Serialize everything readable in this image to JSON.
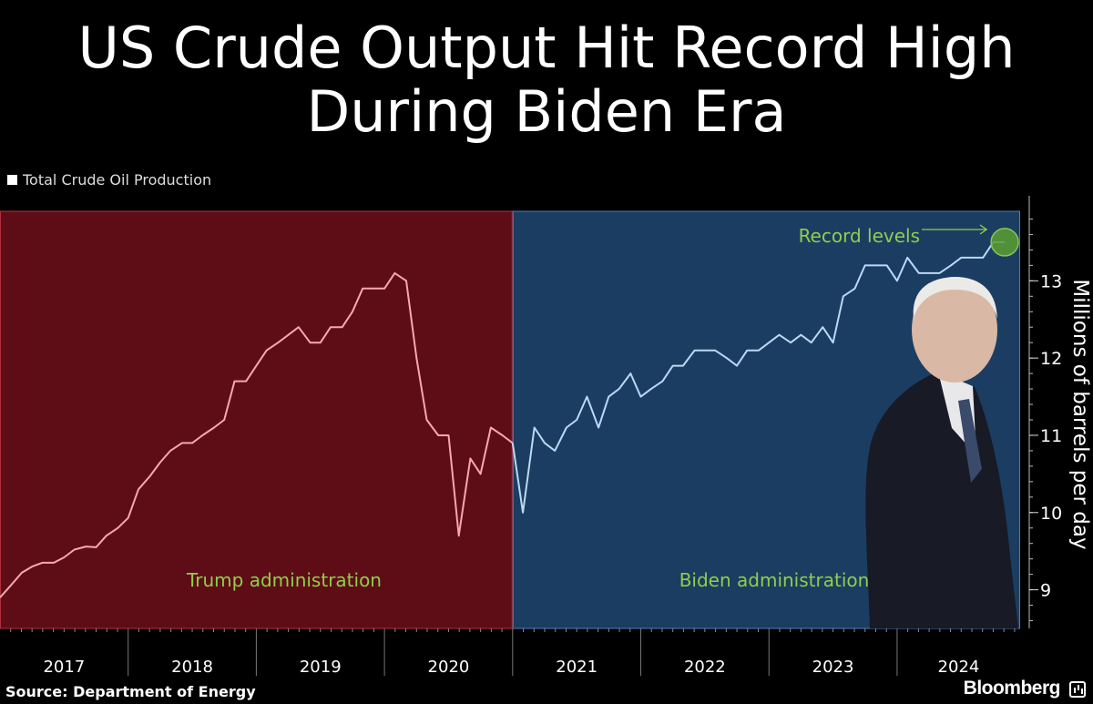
{
  "title": [
    "US Crude Output Hit Record High",
    "During Biden Era"
  ],
  "legend": "Total Crude Oil Production",
  "source": "Source:  Department of Energy",
  "brand": "Bloomberg",
  "colors": {
    "trump_region": "#5e0d17",
    "biden_region": "#1b3d62",
    "trump_line": "#f5a8b4",
    "biden_line": "#bcd8f5",
    "annotation": "#8fcf4a",
    "record_marker": "#5a9e32"
  },
  "chart_data": {
    "type": "line",
    "title": "US Crude Output Hit Record High During Biden Era",
    "xlabel": "",
    "ylabel": "Millions of barrels per day",
    "ylim": [
      8.5,
      13.9
    ],
    "xlim": [
      2017.0,
      2024.96
    ],
    "y_ticks": [
      9,
      10,
      11,
      12,
      13
    ],
    "x_tick_labels": [
      "2017",
      "2018",
      "2019",
      "2020",
      "2021",
      "2022",
      "2023",
      "2024"
    ],
    "regions": [
      {
        "name": "Trump administration",
        "start": 2017.0,
        "end": 2021.0
      },
      {
        "name": "Biden administration",
        "start": 2021.0,
        "end": 2024.96
      }
    ],
    "annotation": {
      "text": "Record levels",
      "x": 2024.84,
      "y": 13.5
    },
    "series": [
      {
        "name": "Trump administration",
        "x": [
          2017.0,
          2017.08,
          2017.17,
          2017.25,
          2017.33,
          2017.42,
          2017.5,
          2017.58,
          2017.67,
          2017.75,
          2017.83,
          2017.92,
          2018.0,
          2018.08,
          2018.17,
          2018.25,
          2018.33,
          2018.42,
          2018.5,
          2018.58,
          2018.67,
          2018.75,
          2018.83,
          2018.92,
          2019.0,
          2019.08,
          2019.17,
          2019.25,
          2019.33,
          2019.42,
          2019.5,
          2019.58,
          2019.67,
          2019.75,
          2019.83,
          2019.92,
          2020.0,
          2020.08,
          2020.17,
          2020.25,
          2020.33,
          2020.42,
          2020.5,
          2020.58,
          2020.67,
          2020.75,
          2020.83,
          2020.92,
          2021.0
        ],
        "values": [
          8.9,
          9.05,
          9.22,
          9.3,
          9.35,
          9.35,
          9.42,
          9.52,
          9.56,
          9.55,
          9.7,
          9.8,
          9.93,
          10.3,
          10.47,
          10.65,
          10.8,
          10.9,
          10.9,
          11.0,
          11.1,
          11.2,
          11.7,
          11.7,
          11.9,
          12.1,
          12.2,
          12.3,
          12.4,
          12.2,
          12.2,
          12.4,
          12.4,
          12.6,
          12.9,
          12.9,
          12.9,
          13.1,
          13.0,
          12.0,
          11.2,
          11.0,
          11.0,
          9.7,
          10.7,
          10.5,
          11.1,
          11.0,
          10.9
        ]
      },
      {
        "name": "Biden administration",
        "x": [
          2021.0,
          2021.08,
          2021.17,
          2021.25,
          2021.33,
          2021.42,
          2021.5,
          2021.58,
          2021.67,
          2021.75,
          2021.83,
          2021.92,
          2022.0,
          2022.08,
          2022.17,
          2022.25,
          2022.33,
          2022.42,
          2022.5,
          2022.58,
          2022.67,
          2022.75,
          2022.83,
          2022.92,
          2023.0,
          2023.08,
          2023.17,
          2023.25,
          2023.33,
          2023.42,
          2023.5,
          2023.58,
          2023.67,
          2023.75,
          2023.83,
          2023.92,
          2024.0,
          2024.08,
          2024.17,
          2024.25,
          2024.33,
          2024.42,
          2024.5,
          2024.58,
          2024.67,
          2024.75,
          2024.84
        ],
        "values": [
          10.9,
          10.0,
          11.1,
          10.9,
          10.8,
          11.1,
          11.2,
          11.5,
          11.1,
          11.5,
          11.6,
          11.8,
          11.5,
          11.6,
          11.7,
          11.9,
          11.9,
          12.1,
          12.1,
          12.1,
          12.0,
          11.9,
          12.1,
          12.1,
          12.2,
          12.3,
          12.2,
          12.3,
          12.2,
          12.4,
          12.2,
          12.8,
          12.9,
          13.2,
          13.2,
          13.2,
          13.0,
          13.3,
          13.1,
          13.1,
          13.1,
          13.2,
          13.3,
          13.3,
          13.3,
          13.5,
          13.5
        ]
      }
    ]
  }
}
